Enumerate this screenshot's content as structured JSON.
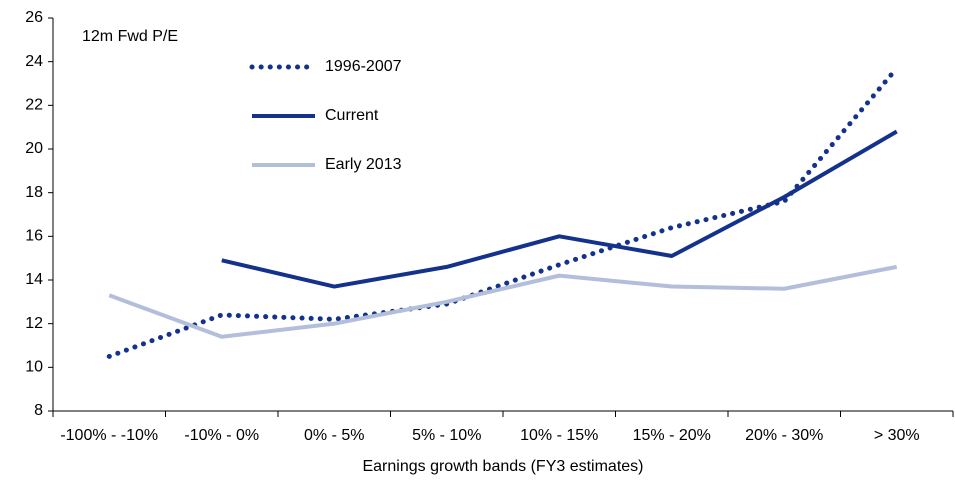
{
  "chart_data": {
    "type": "line",
    "y_label": "12m Fwd P/E",
    "x_label": "Earnings growth bands (FY3 estimates)",
    "categories": [
      "-100% - -10%",
      "-10% - 0%",
      "0% - 5%",
      "5% - 10%",
      "10% - 15%",
      "15% - 20%",
      "20% - 30%",
      "> 30%"
    ],
    "series": [
      {
        "name": "1996-2007",
        "color": "#14328c",
        "style": "dotted",
        "values": [
          10.5,
          12.4,
          12.2,
          12.9,
          14.7,
          16.4,
          17.6,
          23.7
        ]
      },
      {
        "name": "Current",
        "color": "#14328c",
        "style": "solid",
        "values": [
          null,
          14.9,
          13.7,
          14.6,
          16.0,
          15.1,
          17.8,
          20.8
        ]
      },
      {
        "name": "Early 2013",
        "color": "#b3bedb",
        "style": "solid",
        "values": [
          13.3,
          11.4,
          12.0,
          13.0,
          14.2,
          13.7,
          13.6,
          14.6
        ]
      }
    ],
    "ylim": [
      8,
      26
    ],
    "yticks": [
      8,
      10,
      12,
      14,
      16,
      18,
      20,
      22,
      24,
      26
    ]
  }
}
